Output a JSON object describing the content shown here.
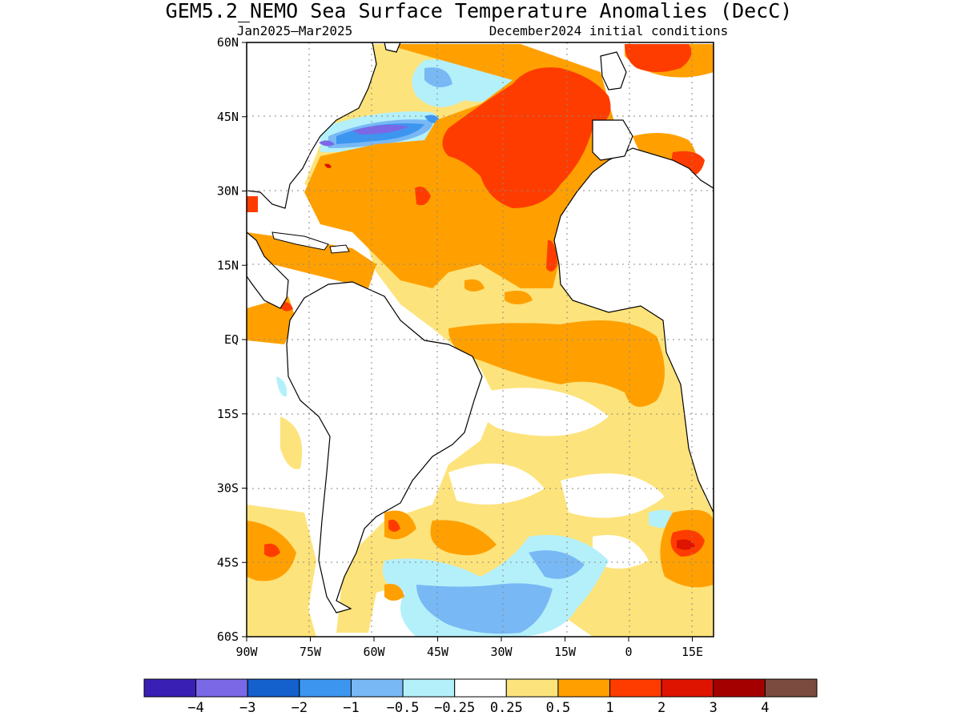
{
  "header": {
    "title": "GEM5.2_NEMO Sea Surface Temperature Anomalies (DecC)",
    "period": "Jan2025–Mar2025",
    "init": "December2024 initial conditions"
  },
  "map": {
    "lon_range": [
      -90,
      20
    ],
    "lat_range": [
      -60,
      60
    ],
    "lat_ticks": [
      {
        "lat": 60,
        "label": "60N"
      },
      {
        "lat": 45,
        "label": "45N"
      },
      {
        "lat": 30,
        "label": "30N"
      },
      {
        "lat": 15,
        "label": "15N"
      },
      {
        "lat": 0,
        "label": "EQ"
      },
      {
        "lat": -15,
        "label": "15S"
      },
      {
        "lat": -30,
        "label": "30S"
      },
      {
        "lat": -45,
        "label": "45S"
      },
      {
        "lat": -60,
        "label": "60S"
      }
    ],
    "lon_ticks": [
      {
        "lon": -90,
        "label": "90W"
      },
      {
        "lon": -75,
        "label": "75W"
      },
      {
        "lon": -60,
        "label": "60W"
      },
      {
        "lon": -45,
        "label": "45W"
      },
      {
        "lon": -30,
        "label": "30W"
      },
      {
        "lon": -15,
        "label": "15W"
      },
      {
        "lon": 0,
        "label": "0"
      },
      {
        "lon": 15,
        "label": "15E"
      }
    ],
    "grid_lines": true
  },
  "colorbar": {
    "colors": [
      "#3a1fb5",
      "#7b68e6",
      "#1460cc",
      "#3c96f0",
      "#78b8f5",
      "#b4f0fa",
      "#ffffff",
      "#fde37b",
      "#ffa000",
      "#ff3c00",
      "#de1400",
      "#a50000",
      "#7a4b3e"
    ],
    "labels": [
      "−4",
      "−3",
      "−2",
      "−1",
      "−0.5",
      "−0.25",
      "0.25",
      "0.5",
      "1",
      "2",
      "3",
      "4"
    ]
  }
}
